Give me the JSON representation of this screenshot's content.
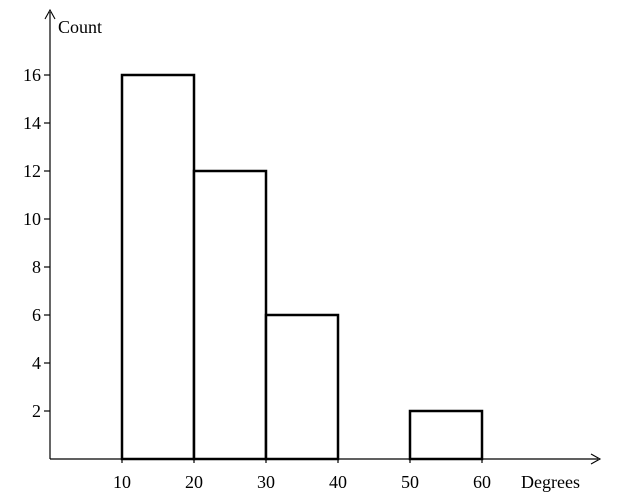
{
  "chart_data": {
    "type": "bar",
    "title": "",
    "xlabel": "Degrees",
    "ylabel": "Count",
    "bins": [
      {
        "from": 10,
        "to": 20,
        "value": 16
      },
      {
        "from": 20,
        "to": 30,
        "value": 12
      },
      {
        "from": 30,
        "to": 40,
        "value": 6
      },
      {
        "from": 40,
        "to": 50,
        "value": 0
      },
      {
        "from": 50,
        "to": 60,
        "value": 2
      }
    ],
    "x_ticks": [
      10,
      20,
      30,
      40,
      50,
      60
    ],
    "y_ticks": [
      2,
      4,
      6,
      8,
      10,
      12,
      14,
      16
    ],
    "xlim": [
      0,
      76
    ],
    "ylim": [
      0,
      18
    ],
    "grid": false,
    "bar_fill": "#ffffff",
    "bar_stroke": "#000000"
  }
}
